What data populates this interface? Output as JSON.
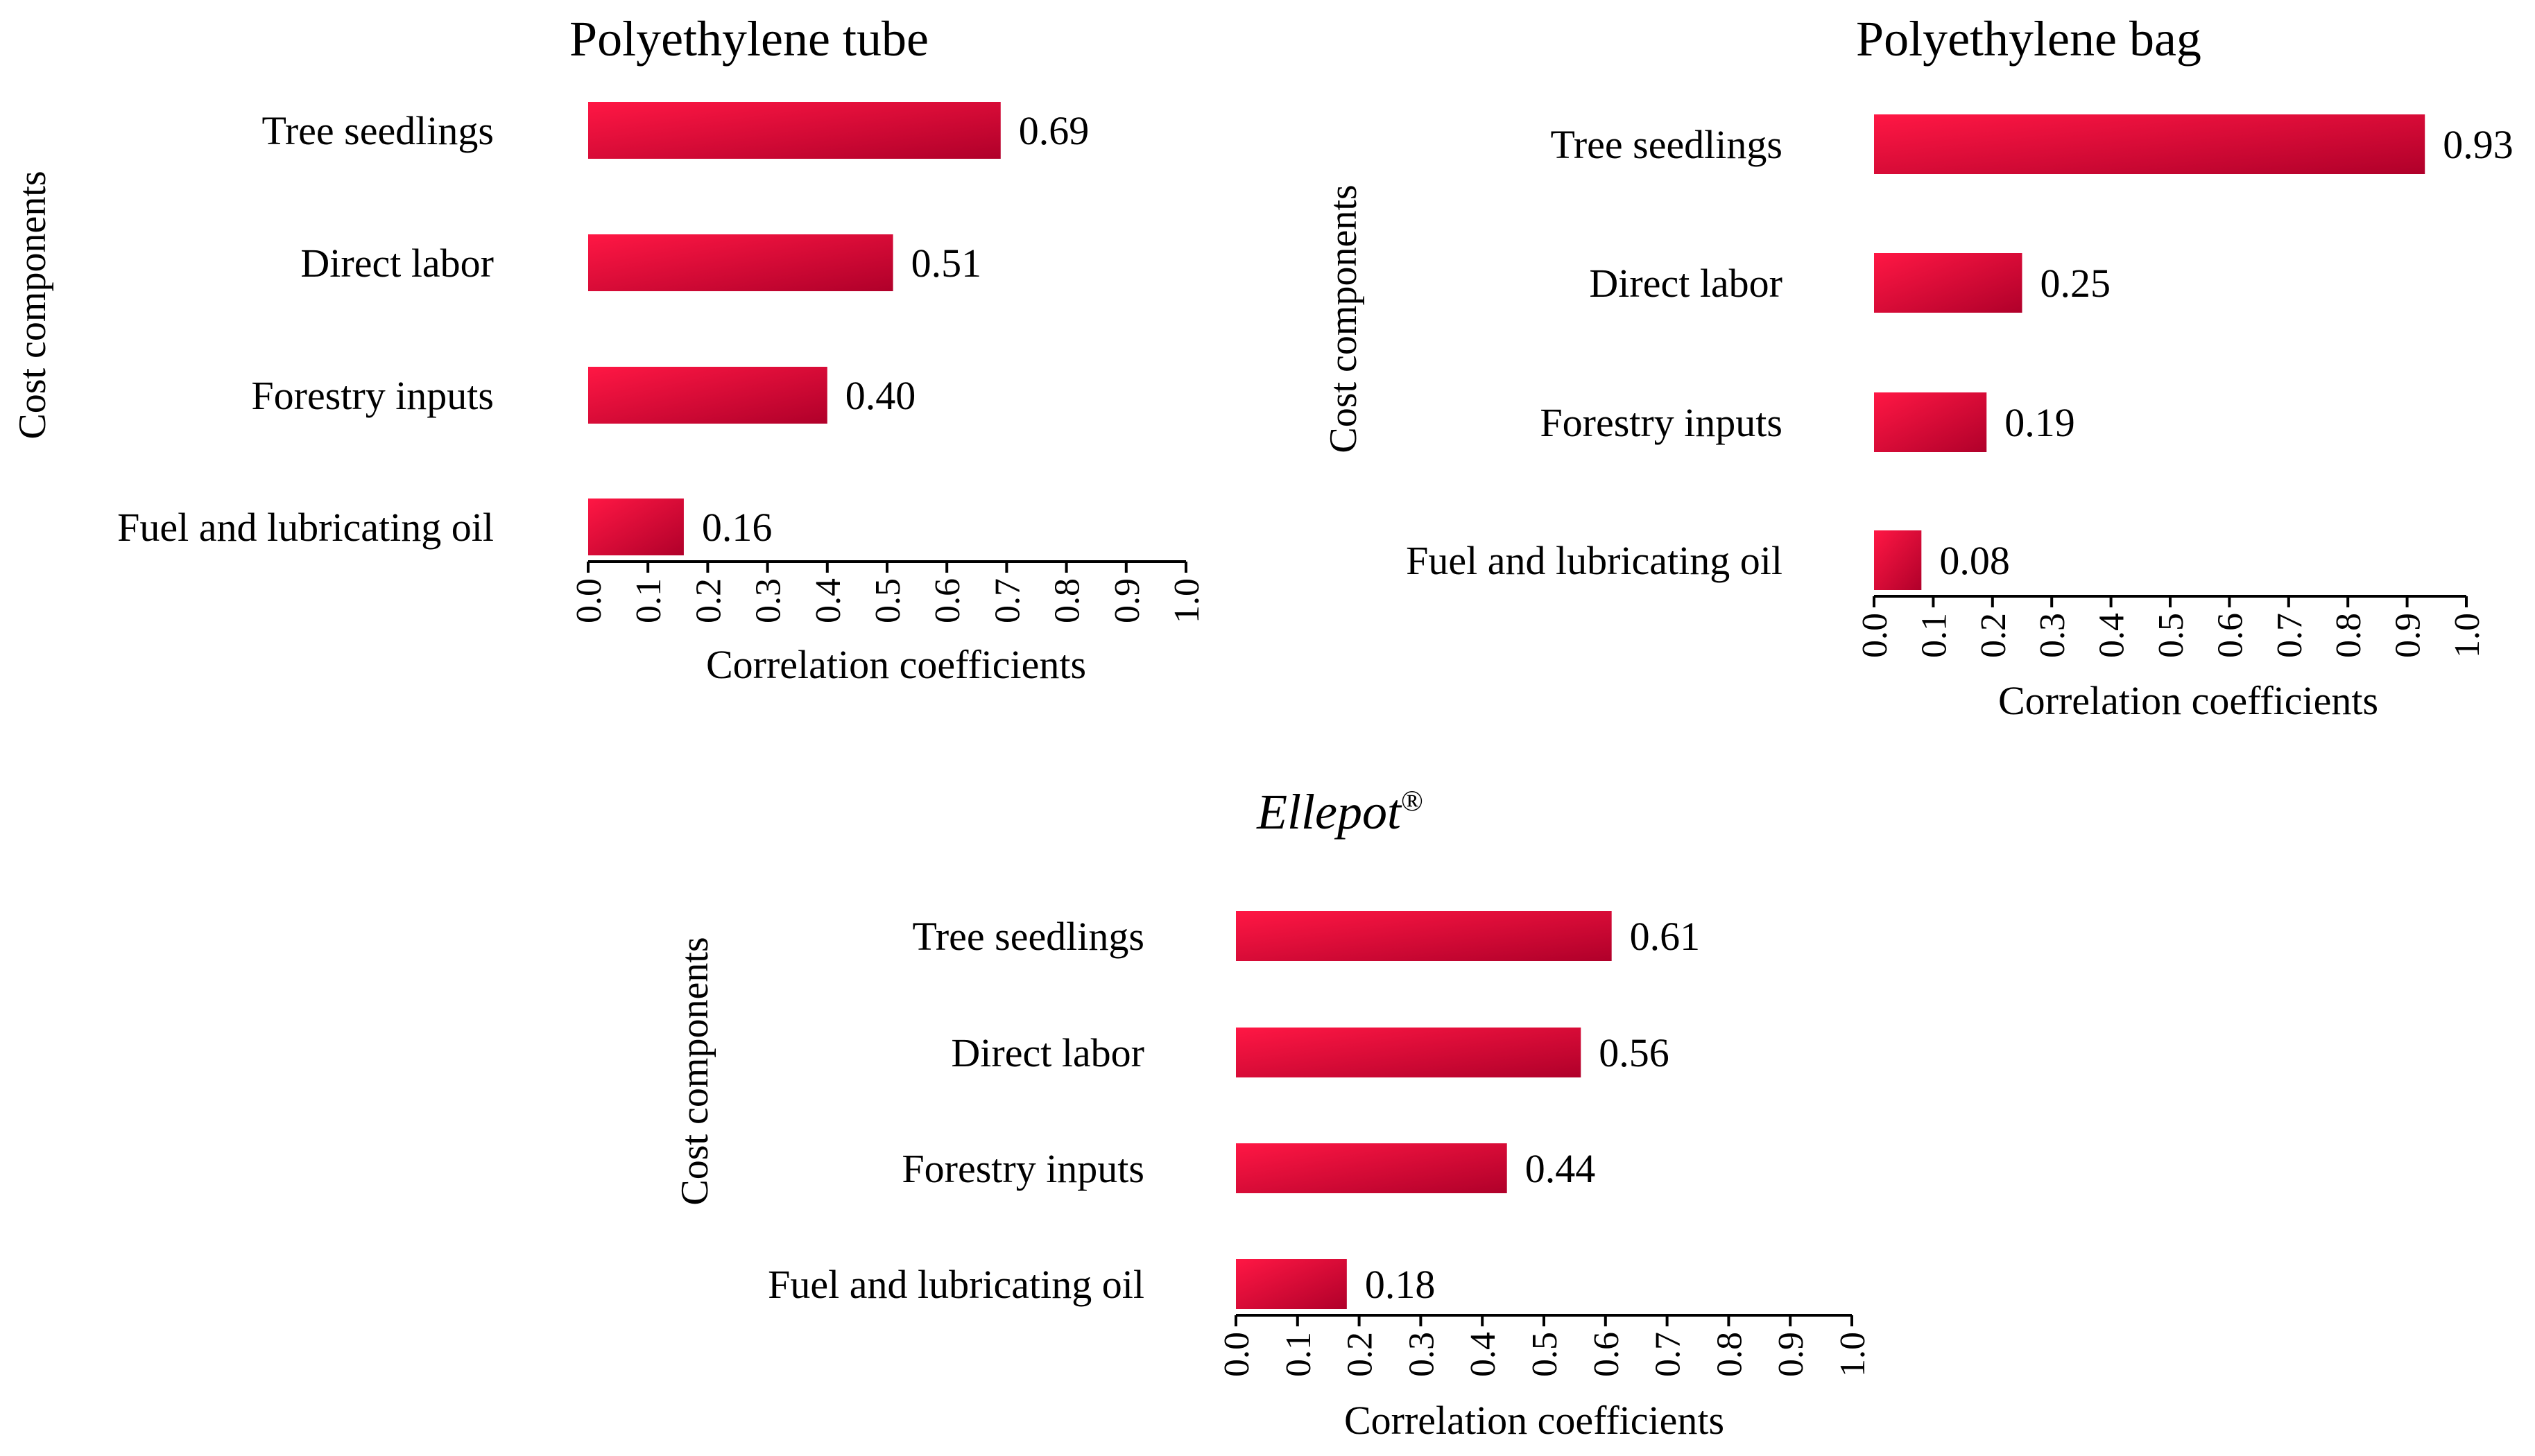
{
  "chart_data": [
    {
      "type": "bar",
      "orientation": "horizontal",
      "title": "Polyethylene tube",
      "title_style": "normal",
      "title_superscript": "",
      "xlabel": "Correlation coefficients",
      "ylabel": "Cost components",
      "categories": [
        "Tree seedlings",
        "Direct labor",
        "Forestry inputs",
        "Fuel and lubricating oil"
      ],
      "values": [
        0.69,
        0.51,
        0.4,
        0.16
      ],
      "value_labels": [
        "0.69",
        "0.51",
        "0.40",
        "0.16"
      ],
      "xlim": [
        0.0,
        1.0
      ],
      "xticks": [
        "0.0",
        "0.1",
        "0.2",
        "0.3",
        "0.4",
        "0.5",
        "0.6",
        "0.7",
        "0.8",
        "0.9",
        "1.0"
      ]
    },
    {
      "type": "bar",
      "orientation": "horizontal",
      "title": "Polyethylene bag",
      "title_style": "normal",
      "title_superscript": "",
      "xlabel": "Correlation coefficients",
      "ylabel": "Cost components",
      "categories": [
        "Tree seedlings",
        "Direct labor",
        "Forestry inputs",
        "Fuel and lubricating oil"
      ],
      "values": [
        0.93,
        0.25,
        0.19,
        0.08
      ],
      "value_labels": [
        "0.93",
        "0.25",
        "0.19",
        "0.08"
      ],
      "xlim": [
        0.0,
        1.0
      ],
      "xticks": [
        "0.0",
        "0.1",
        "0.2",
        "0.3",
        "0.4",
        "0.5",
        "0.6",
        "0.7",
        "0.8",
        "0.9",
        "1.0"
      ]
    },
    {
      "type": "bar",
      "orientation": "horizontal",
      "title": "Ellepot",
      "title_style": "italic",
      "title_superscript": "®",
      "xlabel": "Correlation coefficients",
      "ylabel": "Cost components",
      "categories": [
        "Tree seedlings",
        "Direct labor",
        "Forestry inputs",
        "Fuel and lubricating oil"
      ],
      "values": [
        0.61,
        0.56,
        0.44,
        0.18
      ],
      "value_labels": [
        "0.61",
        "0.56",
        "0.44",
        "0.18"
      ],
      "xlim": [
        0.0,
        1.0
      ],
      "xticks": [
        "0.0",
        "0.1",
        "0.2",
        "0.3",
        "0.4",
        "0.5",
        "0.6",
        "0.7",
        "0.8",
        "0.9",
        "1.0"
      ]
    }
  ],
  "colors": {
    "bar_light": "#ff1744",
    "bar_dark": "#b0002a",
    "axis": "#000000",
    "text": "#000000"
  }
}
